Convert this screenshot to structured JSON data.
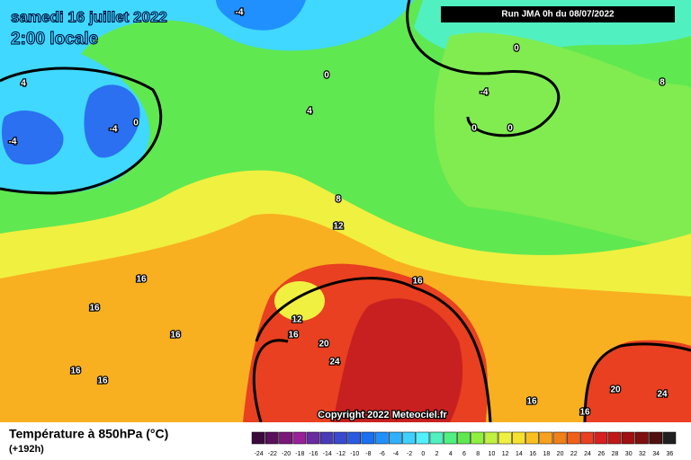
{
  "header": {
    "date": "samedi 16 juillet 2022",
    "time": "2:00 locale",
    "run": "Run JMA 0h du 08/07/2022"
  },
  "copyright": "Copyright 2022 Meteociel.fr",
  "footer": {
    "title": "Température à 850hPa (°C)",
    "lead": "(+192h)"
  },
  "contour_labels": [
    -4,
    4,
    -4,
    -4,
    0,
    0,
    0,
    -4,
    4,
    8,
    0,
    0,
    8,
    12,
    16,
    16,
    16,
    12,
    16,
    16,
    20,
    16,
    16,
    24,
    20,
    24,
    16,
    16
  ],
  "scale": {
    "values": [
      -24,
      -22,
      -20,
      -18,
      -16,
      -14,
      -12,
      -10,
      -8,
      -6,
      -4,
      -2,
      0,
      2,
      4,
      6,
      8,
      10,
      12,
      14,
      16,
      18,
      20,
      22,
      24,
      26,
      28,
      30,
      32,
      34,
      36
    ],
    "colors": [
      "#3a0a3a",
      "#5a105a",
      "#7a187a",
      "#9a209a",
      "#6a2aa0",
      "#4a3ab8",
      "#3a4ad0",
      "#2a5ae0",
      "#1a70f0",
      "#2090ff",
      "#30b0ff",
      "#40d0ff",
      "#50f0ff",
      "#50f0c0",
      "#50f080",
      "#60e850",
      "#90f040",
      "#c0f040",
      "#f0f040",
      "#f8e030",
      "#f8c020",
      "#f8a020",
      "#f08018",
      "#f06018",
      "#e84020",
      "#d82020",
      "#c01818",
      "#a01010",
      "#801010",
      "#501010",
      "#202020"
    ]
  }
}
